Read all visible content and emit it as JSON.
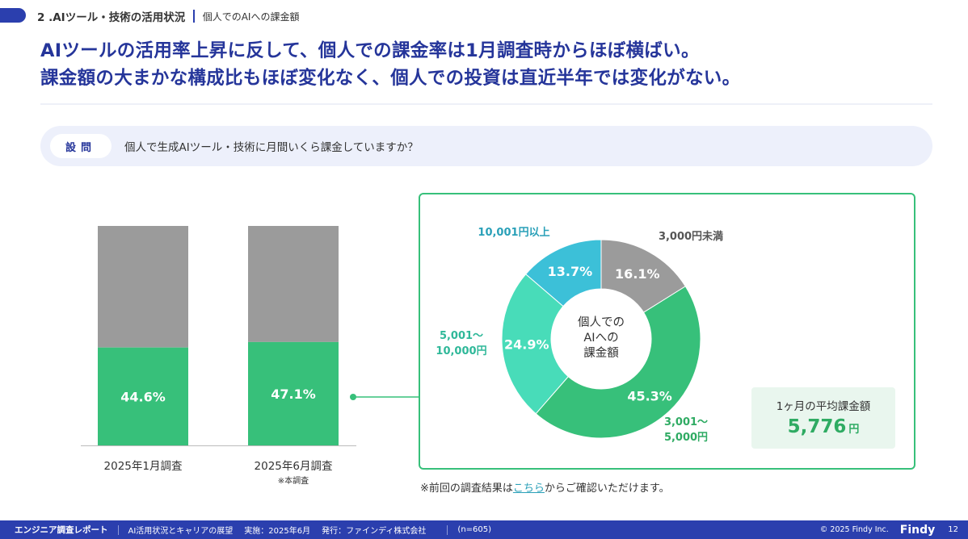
{
  "header": {
    "section": "2 .AIツール・技術の活用状況",
    "subtitle": "個人でのAIへの課金額"
  },
  "headline": {
    "line1": "AIツールの活用率上昇に反して、個人での課金率は1月調査時からほぼ横ばい。",
    "line2": "課金額の大まかな構成比もほぼ変化なく、個人での投資は直近半年では変化がない。"
  },
  "question": {
    "label": "設問",
    "text": "個人で生成AIツール・技術に月間いくら課金していますか？"
  },
  "chart_data": [
    {
      "type": "bar",
      "stacked": true,
      "categories": [
        "2025年1月調査",
        "2025年6月調査"
      ],
      "category_notes": [
        "",
        "※本調査"
      ],
      "values": [
        44.6,
        47.1
      ],
      "value_labels": [
        "44.6%",
        "47.1%"
      ],
      "ylim": [
        0,
        100
      ],
      "colors": {
        "paid": "#37c07a",
        "rest": "#9b9b9b"
      }
    },
    {
      "type": "pie",
      "donut": true,
      "center_label": [
        "個人での",
        "AIへの",
        "課金額"
      ],
      "slices": [
        {
          "label": "3,000円未満",
          "value": 16.1,
          "value_label": "16.1%",
          "color": "#9b9b9b",
          "label_color": "#555555"
        },
        {
          "label": "3,001〜\n5,000円",
          "value": 45.3,
          "value_label": "45.3%",
          "color": "#37c07a",
          "label_color": "#2fab63"
        },
        {
          "label": "5,001〜\n10,000円",
          "value": 24.9,
          "value_label": "24.9%",
          "color": "#48dcb9",
          "label_color": "#2fb899"
        },
        {
          "label": "10,001円以上",
          "value": 13.7,
          "value_label": "13.7%",
          "color": "#3cc0d8",
          "label_color": "#2aa0b8"
        }
      ]
    }
  ],
  "average": {
    "label": "1ヶ月の平均課金額",
    "value": "5,776",
    "unit": "円"
  },
  "note": {
    "prefix": "※前回の調査結果は",
    "link": "こちら",
    "suffix": "からご確認いただけます。"
  },
  "footer": {
    "report": "エンジニア調査レポート",
    "topic": "AI活用状況とキャリアの展望",
    "date": "実施：2025年6月",
    "publisher": "発行：ファインディ株式会社",
    "n": "(n=605)",
    "copyright": "© 2025 Findy Inc.",
    "logo": "Findy",
    "page": "12"
  }
}
